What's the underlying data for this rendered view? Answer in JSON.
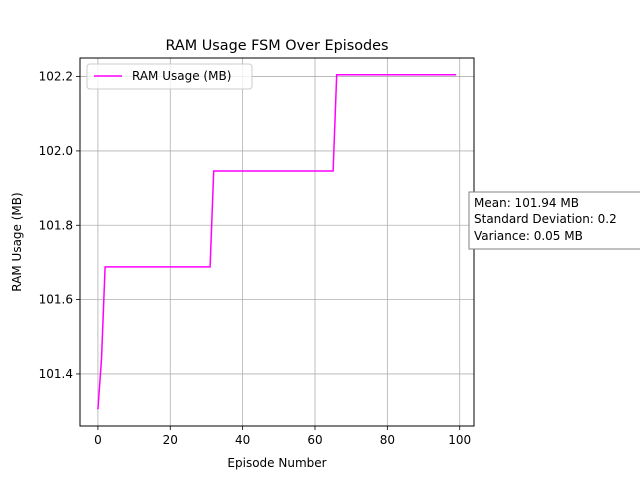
{
  "chart_data": {
    "type": "line",
    "title": "RAM Usage FSM Over Episodes",
    "xlabel": "Episode Number",
    "ylabel": "RAM Usage (MB)",
    "xlim": [
      -4.95,
      103.95
    ],
    "ylim": [
      101.26,
      102.25
    ],
    "xticks": [
      0,
      20,
      40,
      60,
      80,
      100
    ],
    "xtick_labels": [
      "0",
      "20",
      "40",
      "60",
      "80",
      "100"
    ],
    "yticks": [
      101.4,
      101.6,
      101.8,
      102.0,
      102.2
    ],
    "ytick_labels": [
      "101.4",
      "101.6",
      "101.8",
      "102.0",
      "102.2"
    ],
    "grid": true,
    "legend_position": "upper-left",
    "series": [
      {
        "name": "RAM Usage (MB)",
        "color": "#ff00ff",
        "x": [
          0,
          1,
          2,
          31,
          32,
          65,
          66,
          99
        ],
        "y": [
          101.305,
          101.44,
          101.688,
          101.688,
          101.946,
          101.946,
          102.205,
          102.205
        ]
      }
    ],
    "annotation": {
      "lines": [
        "Mean: 101.94 MB",
        "Standard Deviation: 0.2",
        "Variance: 0.05 MB"
      ]
    }
  }
}
